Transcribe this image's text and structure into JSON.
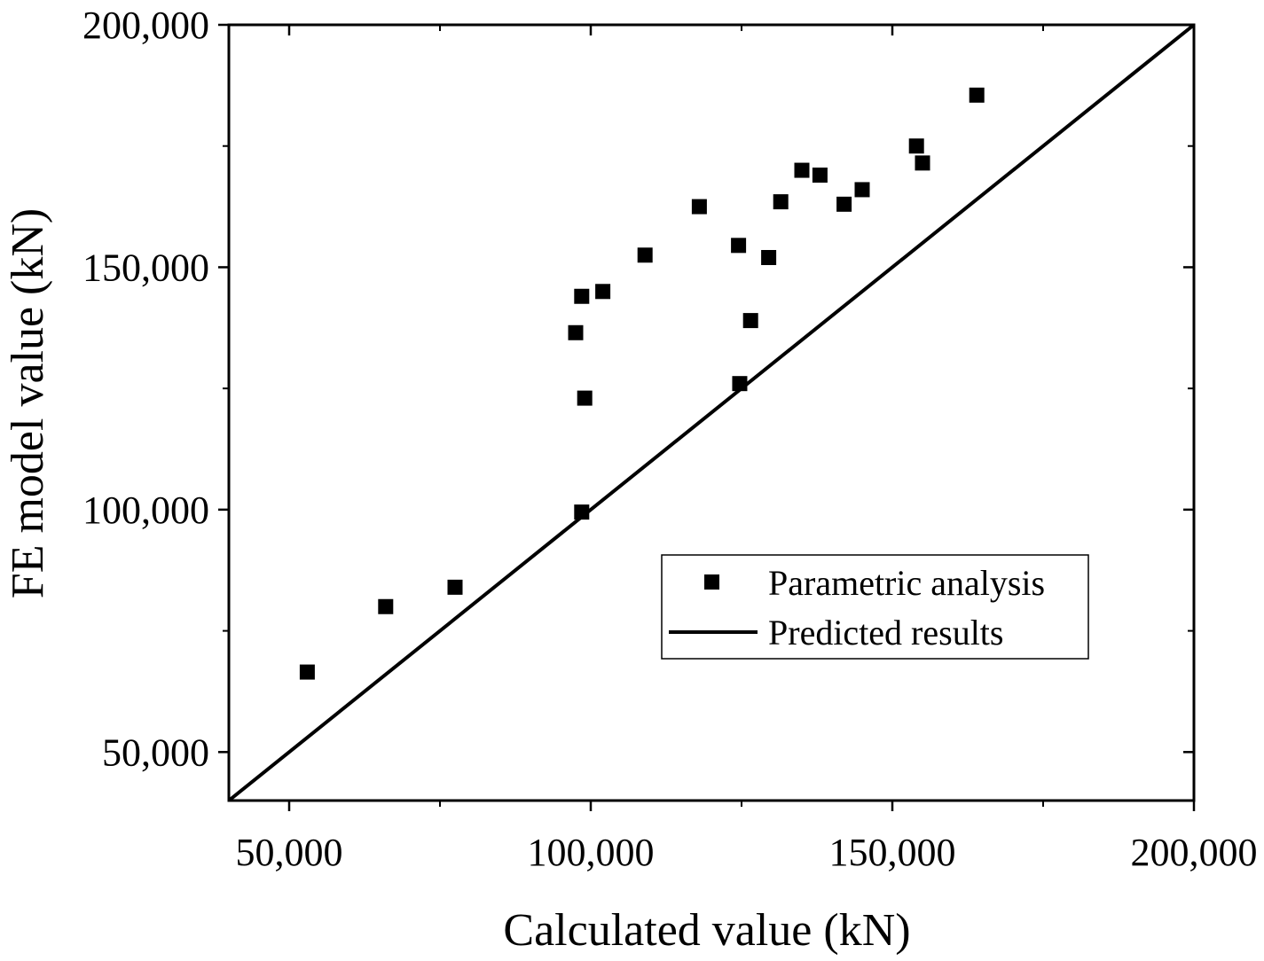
{
  "chart_data": {
    "type": "scatter",
    "title": "",
    "xlabel": "Calculated value (kN)",
    "ylabel": "FE model value (kN)",
    "xlim": [
      40000,
      200000
    ],
    "ylim": [
      40000,
      200000
    ],
    "x_ticks": [
      50000,
      100000,
      150000,
      200000
    ],
    "x_tick_labels": [
      "50,000",
      "100,000",
      "150,000",
      "200,000"
    ],
    "y_ticks": [
      50000,
      100000,
      150000,
      200000
    ],
    "y_tick_labels": [
      "50,000",
      "100,000",
      "150,000",
      "200,000"
    ],
    "x_minor_ticks": [
      75000,
      125000,
      175000
    ],
    "y_minor_ticks": [
      75000,
      125000,
      175000
    ],
    "grid": false,
    "legend_position": "center-right",
    "series": [
      {
        "name": "Parametric analysis",
        "kind": "scatter",
        "marker": "square",
        "color": "#000000",
        "x": [
          53000,
          66000,
          77500,
          97500,
          98500,
          99000,
          98500,
          102000,
          109000,
          118000,
          124500,
          124700,
          126500,
          129500,
          131500,
          135000,
          138000,
          142000,
          145000,
          154000,
          155000,
          164000
        ],
        "y": [
          66500,
          80000,
          84000,
          136500,
          144000,
          123000,
          99500,
          145000,
          152500,
          162500,
          154500,
          126000,
          139000,
          152000,
          163500,
          170000,
          169000,
          163000,
          166000,
          175000,
          171500,
          185500
        ]
      },
      {
        "name": "Predicted results",
        "kind": "line",
        "color": "#000000",
        "x": [
          40000,
          200000
        ],
        "y": [
          40000,
          200000
        ]
      }
    ]
  }
}
